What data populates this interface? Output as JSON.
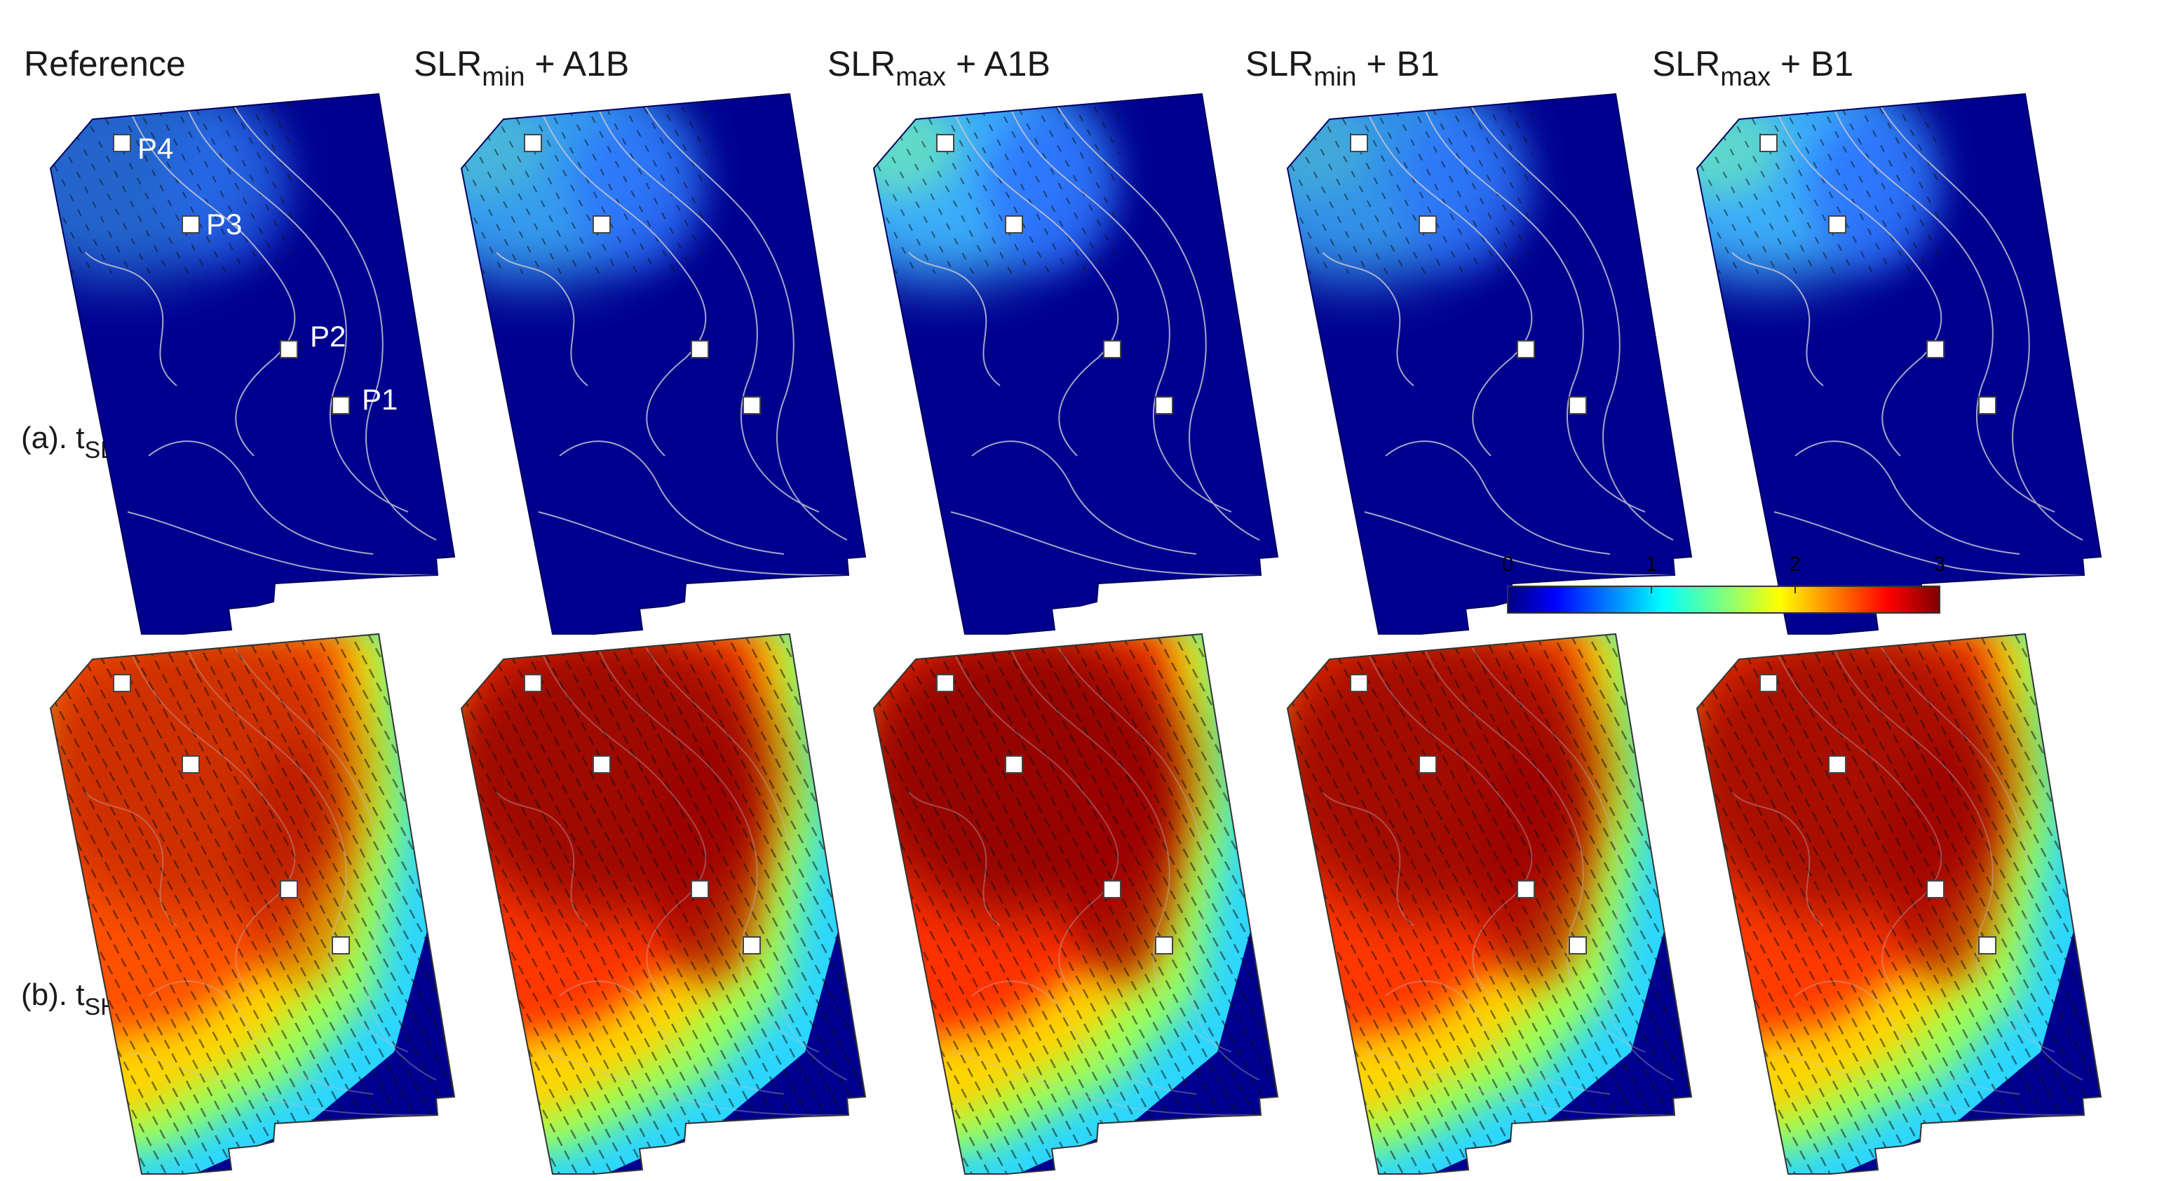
{
  "panels": [
    {
      "title_main": "Reference",
      "title_sub": "",
      "title_suffix": ""
    },
    {
      "title_main": "SLR",
      "title_sub": "min",
      "title_suffix": " + A1B"
    },
    {
      "title_main": "SLR",
      "title_sub": "max",
      "title_suffix": " + A1B"
    },
    {
      "title_main": "SLR",
      "title_sub": "min",
      "title_suffix": " + B1"
    },
    {
      "title_main": "SLR",
      "title_sub": "max",
      "title_suffix": " + B1"
    }
  ],
  "rows": [
    {
      "label_main": "(a). t",
      "label_sub": "SL"
    },
    {
      "label_main": "(b). t",
      "label_sub": "SH"
    }
  ],
  "points": [
    "P1",
    "P2",
    "P3",
    "P4"
  ],
  "colorbar": {
    "ticks": [
      "0",
      "1",
      "2",
      "3"
    ],
    "min": 0,
    "max": 3,
    "colormap": "jet"
  },
  "colors": {
    "deep_blue": "#00008f",
    "contour": "#b8b8c8",
    "vector": "#111111",
    "marker": "#ffffff"
  }
}
